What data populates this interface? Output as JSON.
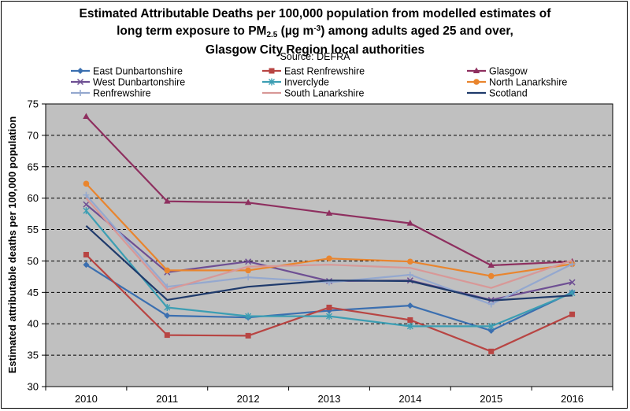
{
  "title": {
    "line1": "Estimated Attributable Deaths per 100,000 population from modelled estimates of",
    "line2_pre": "long term exposure to PM",
    "line2_sub": "2.5",
    "line2_mid": " (µg m",
    "line2_sup": "-3",
    "line2_post": ") among adults aged 25 and over,",
    "line3": "Glasgow City Region local authorities"
  },
  "source": "Source: DEFRA",
  "chart_data": {
    "type": "line",
    "title": "Estimated Attributable Deaths per 100,000 population from modelled estimates of long term exposure to PM2.5 (µg m-3) among adults aged 25 and over, Glasgow City Region local authorities",
    "xlabel": "",
    "ylabel": "Estimated attributable deaths per 100,000 population",
    "ylim": [
      30,
      75
    ],
    "yticks": [
      30,
      35,
      40,
      45,
      50,
      55,
      60,
      65,
      70,
      75
    ],
    "grid": "horizontal dashed",
    "legend_position": "top",
    "x": [
      "2010",
      "2011",
      "2012",
      "2013",
      "2014",
      "2015",
      "2016"
    ],
    "series": [
      {
        "name": "East Dunbartonshire",
        "color": "#3B6FB0",
        "marker": "diamond",
        "values": [
          49.4,
          41.3,
          41.0,
          42.1,
          42.9,
          38.9,
          45.0
        ]
      },
      {
        "name": "East Renfrewshire",
        "color": "#B84543",
        "marker": "square",
        "values": [
          51.0,
          38.2,
          38.1,
          42.6,
          40.6,
          35.6,
          41.5
        ]
      },
      {
        "name": "Glasgow",
        "color": "#8E2F5F",
        "marker": "triangle",
        "values": [
          73.0,
          59.5,
          59.3,
          57.6,
          56.0,
          49.3,
          49.9
        ]
      },
      {
        "name": "West Dunbartonshire",
        "color": "#6E4F93",
        "marker": "x",
        "values": [
          59.0,
          48.2,
          49.9,
          46.8,
          46.9,
          43.8,
          46.6
        ]
      },
      {
        "name": "Inverclyde",
        "color": "#3C9EB3",
        "marker": "star",
        "values": [
          58.0,
          42.6,
          41.2,
          41.2,
          39.6,
          39.6,
          44.9
        ]
      },
      {
        "name": "North Lanarkshire",
        "color": "#E9852E",
        "marker": "circle",
        "values": [
          62.3,
          48.5,
          48.5,
          50.4,
          49.9,
          47.6,
          49.5
        ]
      },
      {
        "name": "Renfrewshire",
        "color": "#94A8CF",
        "marker": "plus",
        "values": [
          60.5,
          45.9,
          47.4,
          46.6,
          47.8,
          43.1,
          49.5
        ]
      },
      {
        "name": "South Lanarkshire",
        "color": "#D89897",
        "marker": "none",
        "values": [
          60.0,
          45.4,
          49.1,
          49.4,
          48.9,
          45.7,
          50.1
        ]
      },
      {
        "name": "Scotland",
        "color": "#1F3A6B",
        "marker": "none",
        "values": [
          55.6,
          43.8,
          45.9,
          46.9,
          46.8,
          43.7,
          44.5
        ]
      }
    ]
  }
}
